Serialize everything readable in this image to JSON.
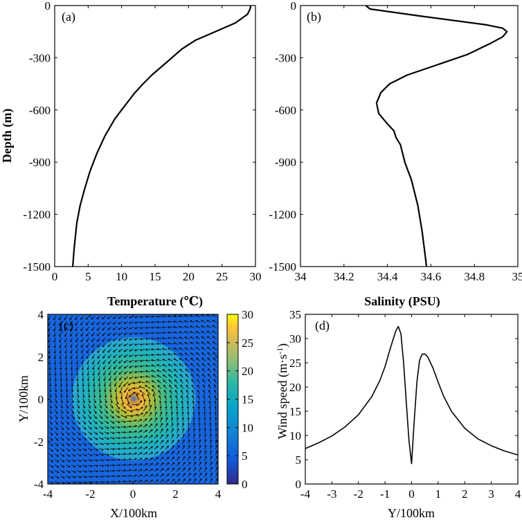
{
  "chart_data": [
    {
      "id": "a",
      "type": "line",
      "panel_label": "(a)",
      "xlabel": "Temperature (℃)",
      "ylabel": "Depth (m)",
      "xlim": [
        0,
        30
      ],
      "ylim": [
        -1500,
        0
      ],
      "xticks": [
        0,
        5,
        10,
        15,
        20,
        25,
        30
      ],
      "yticks": [
        0,
        -300,
        -600,
        -900,
        -1200,
        -1500
      ],
      "xtick_labels": [
        "0",
        "5",
        "10",
        "15",
        "20",
        "25",
        "30"
      ],
      "ytick_labels": [
        "0",
        "-300",
        "-600",
        "-900",
        "-1200",
        "-1500"
      ],
      "series": [
        {
          "x": [
            29.3,
            29.2,
            28.8,
            27.0,
            24.0,
            21.0,
            19.0,
            17.5,
            16.0,
            14.5,
            13.2,
            12.0,
            11.0,
            9.0,
            7.5,
            6.3,
            5.3,
            4.5,
            3.8,
            3.3,
            2.9,
            2.7
          ],
          "y": [
            0,
            -20,
            -50,
            -100,
            -150,
            -200,
            -250,
            -300,
            -350,
            -400,
            -450,
            -500,
            -550,
            -650,
            -750,
            -850,
            -950,
            -1050,
            -1150,
            -1250,
            -1400,
            -1500
          ]
        }
      ]
    },
    {
      "id": "b",
      "type": "line",
      "panel_label": "(b)",
      "xlabel": "Salinity (PSU)",
      "ylabel": "",
      "xlim": [
        34,
        35
      ],
      "ylim": [
        -1500,
        0
      ],
      "xticks": [
        34,
        34.2,
        34.4,
        34.6,
        34.8,
        35
      ],
      "yticks": [
        0,
        -300,
        -600,
        -900,
        -1200,
        -1500
      ],
      "xtick_labels": [
        "34",
        "34.2",
        "34.4",
        "34.6",
        "34.8",
        "35"
      ],
      "ytick_labels": [
        "0",
        "-300",
        "-600",
        "-900",
        "-1200",
        "-1500"
      ],
      "series": [
        {
          "x": [
            34.3,
            34.32,
            34.55,
            34.85,
            34.93,
            34.95,
            34.93,
            34.87,
            34.77,
            34.63,
            34.49,
            34.41,
            34.37,
            34.35,
            34.36,
            34.4,
            34.43,
            34.44,
            34.46,
            34.47,
            34.48,
            34.51,
            34.54,
            34.56,
            34.57,
            34.58
          ],
          "y": [
            0,
            -20,
            -60,
            -110,
            -130,
            -150,
            -180,
            -220,
            -280,
            -340,
            -400,
            -450,
            -500,
            -560,
            -620,
            -680,
            -720,
            -760,
            -800,
            -850,
            -900,
            -1000,
            -1150,
            -1300,
            -1400,
            -1500
          ]
        }
      ]
    },
    {
      "id": "c",
      "type": "heatmap",
      "panel_label": "(c)",
      "xlabel": "X/100km",
      "ylabel": "Y/100km",
      "xlim": [
        -4,
        4
      ],
      "ylim": [
        -4,
        4
      ],
      "xticks": [
        -4,
        -2,
        0,
        2,
        4
      ],
      "yticks": [
        -4,
        -2,
        0,
        2,
        4
      ],
      "xtick_labels": [
        "-4",
        "-2",
        "0",
        "2",
        "4"
      ],
      "ytick_labels": [
        "-4",
        "-2",
        "0",
        "2",
        "4"
      ],
      "colorbar": {
        "min": 0,
        "max": 30,
        "ticks": [
          0,
          5,
          10,
          15,
          20,
          25,
          30
        ],
        "tick_labels": [
          "0",
          "5",
          "10",
          "15",
          "20",
          "25",
          "30"
        ],
        "colormap": "parula"
      },
      "field": "wind speed with cyclonic vector arrows, center near (0.1, 0)",
      "vectors": "counter-clockwise"
    },
    {
      "id": "d",
      "type": "line",
      "panel_label": "(d)",
      "xlabel": "Y/100km",
      "ylabel": "Wind speed (m·s",
      "ylabel_sup": "-1",
      "ylabel_end": ")",
      "xlim": [
        -4,
        4
      ],
      "ylim": [
        0,
        35
      ],
      "xticks": [
        -4,
        -3,
        -2,
        -1,
        0,
        1,
        2,
        3,
        4
      ],
      "yticks": [
        0,
        5,
        10,
        15,
        20,
        25,
        30,
        35
      ],
      "xtick_labels": [
        "-4",
        "-3",
        "-2",
        "-1",
        "0",
        "1",
        "2",
        "3",
        "4"
      ],
      "ytick_labels": [
        "0",
        "5",
        "10",
        "15",
        "20",
        "25",
        "30",
        "35"
      ],
      "series": [
        {
          "x": [
            -4,
            -3.5,
            -3,
            -2.5,
            -2,
            -1.5,
            -1.2,
            -1,
            -0.8,
            -0.6,
            -0.5,
            -0.4,
            -0.3,
            -0.2,
            -0.1,
            0,
            0.1,
            0.2,
            0.3,
            0.4,
            0.5,
            0.6,
            0.8,
            1,
            1.2,
            1.5,
            2,
            2.5,
            3,
            3.5,
            4
          ],
          "y": [
            7.3,
            8.5,
            9.9,
            11.8,
            14.3,
            18.0,
            21.3,
            24.2,
            28.0,
            31.5,
            32.5,
            31.0,
            25.0,
            17.0,
            9.0,
            4.2,
            13.0,
            21.0,
            25.5,
            26.8,
            26.8,
            26.3,
            24.0,
            21.0,
            18.2,
            15.0,
            11.5,
            9.3,
            7.9,
            6.8,
            6.0
          ]
        }
      ]
    }
  ]
}
